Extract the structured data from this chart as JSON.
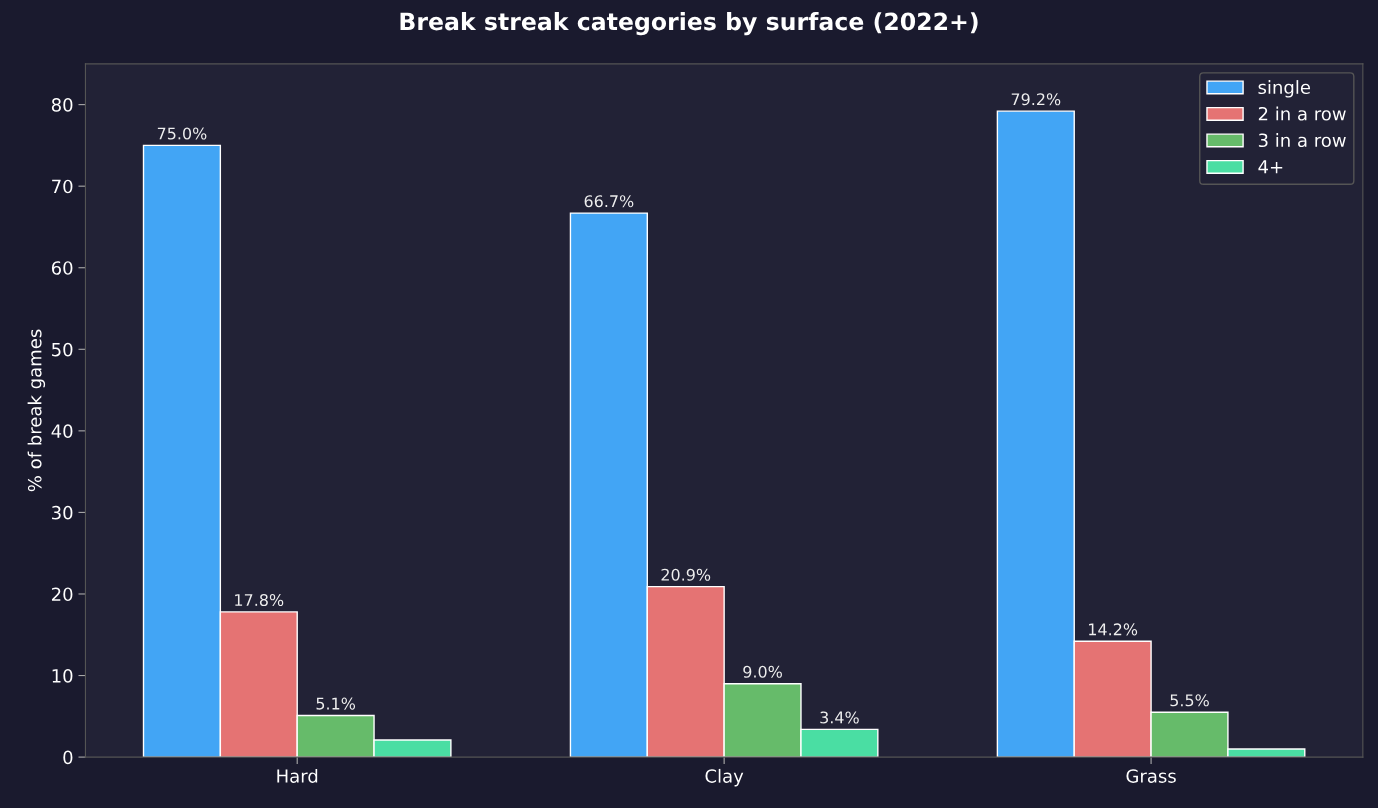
{
  "chart_data": {
    "type": "bar",
    "title": "Break streak categories by surface (2022+)",
    "ylabel": "% of break games",
    "categories": [
      "Hard",
      "Clay",
      "Grass"
    ],
    "series": [
      {
        "name": "single",
        "color": "#42a5f5",
        "values": [
          75.0,
          66.7,
          79.2
        ],
        "value_labels": [
          "75.0%",
          "66.7%",
          "79.2%"
        ]
      },
      {
        "name": "2 in a row",
        "color": "#e57373",
        "values": [
          17.8,
          20.9,
          14.2
        ],
        "value_labels": [
          "17.8%",
          "20.9%",
          "14.2%"
        ]
      },
      {
        "name": "3 in a row",
        "color": "#66bb6a",
        "values": [
          5.1,
          9.0,
          5.5
        ],
        "value_labels": [
          "5.1%",
          "9.0%",
          "5.5%"
        ]
      },
      {
        "name": "4+",
        "color": "#4adea3",
        "values": [
          2.1,
          3.4,
          1.0
        ],
        "value_labels": [
          null,
          "3.4%",
          null
        ]
      }
    ],
    "ylim": [
      0,
      85
    ],
    "yticks": [
      0,
      10,
      20,
      30,
      40,
      50,
      60,
      70,
      80
    ],
    "grid": false,
    "legend": "top right"
  }
}
